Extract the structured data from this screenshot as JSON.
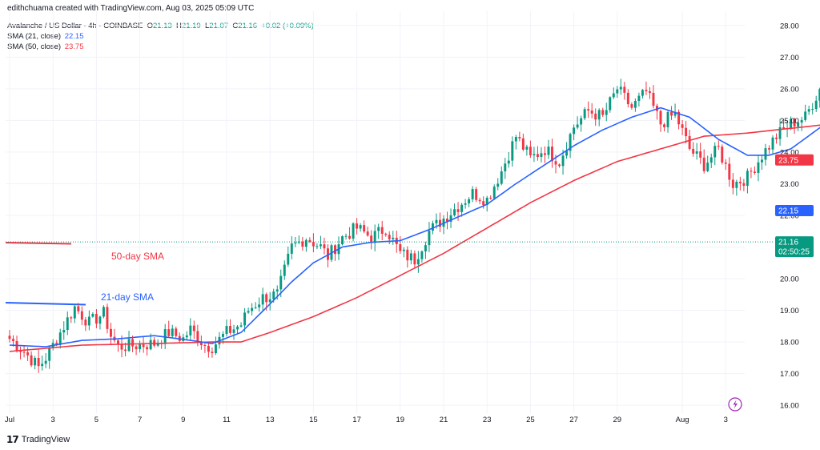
{
  "header": {
    "credit": "edithchuama created with TradingView.com, Aug 03, 2025 05:09 UTC"
  },
  "legend": {
    "symbol": "Avalanche / US Dollar · 4h · COINBASE",
    "ohlc": {
      "o_label": "O",
      "o": "21.13",
      "h_label": "H",
      "h": "21.19",
      "l_label": "L",
      "l": "21.07",
      "c_label": "C",
      "c": "21.16",
      "chg": "+0.02 (+0.09%)"
    },
    "sma21": {
      "label": "SMA (21, close)",
      "value": "22.15"
    },
    "sma50": {
      "label": "SMA (50, close)",
      "value": "23.75"
    }
  },
  "annotations": {
    "sma50_label": "50-day SMA",
    "sma21_label": "21-day SMA"
  },
  "price_badges": {
    "last": "21.16",
    "countdown": "02:50:25",
    "sma21": "22.15",
    "sma50": "23.75"
  },
  "colors": {
    "up": "#089981",
    "down": "#F23645",
    "sma21": "#2962FF",
    "sma50": "#F23645",
    "grid": "#F0F3FA",
    "text": "#131722"
  },
  "branding": "TradingView",
  "chart_data": {
    "type": "candlestick",
    "ylim": [
      15.75,
      28.45
    ],
    "yticks": [
      "16.00",
      "17.00",
      "18.00",
      "19.00",
      "20.00",
      "21.00",
      "22.00",
      "23.00",
      "24.00",
      "25.00",
      "26.00",
      "27.00",
      "28.00"
    ],
    "xticks": [
      "Jul",
      "3",
      "5",
      "7",
      "9",
      "11",
      "13",
      "15",
      "17",
      "19",
      "21",
      "23",
      "25",
      "27",
      "29",
      "Aug",
      "3"
    ],
    "candles_per_day": 6,
    "x_start_offset": 0,
    "anchors": [
      [
        0,
        18.1
      ],
      [
        4,
        17.7
      ],
      [
        8,
        17.2
      ],
      [
        10,
        17.5
      ],
      [
        14,
        18.3
      ],
      [
        18,
        19.1
      ],
      [
        22,
        18.6
      ],
      [
        26,
        18.9
      ],
      [
        28,
        18.2
      ],
      [
        30,
        17.85
      ],
      [
        36,
        17.9
      ],
      [
        40,
        17.95
      ],
      [
        44,
        18.3
      ],
      [
        48,
        18.1
      ],
      [
        50,
        18.4
      ],
      [
        54,
        17.9
      ],
      [
        56,
        17.85
      ],
      [
        60,
        18.3
      ],
      [
        64,
        18.55
      ],
      [
        66,
        19.0
      ],
      [
        70,
        19.4
      ],
      [
        74,
        19.5
      ],
      [
        78,
        21.0
      ],
      [
        82,
        21.3
      ],
      [
        86,
        21.0
      ],
      [
        88,
        20.7
      ],
      [
        92,
        21.3
      ],
      [
        96,
        21.6
      ],
      [
        100,
        21.3
      ],
      [
        104,
        21.6
      ],
      [
        108,
        20.8
      ],
      [
        112,
        20.6
      ],
      [
        116,
        21.5
      ],
      [
        120,
        21.9
      ],
      [
        124,
        22.3
      ],
      [
        128,
        22.7
      ],
      [
        132,
        22.5
      ],
      [
        136,
        23.4
      ],
      [
        140,
        24.5
      ],
      [
        144,
        23.8
      ],
      [
        148,
        24.1
      ],
      [
        152,
        23.7
      ],
      [
        156,
        24.8
      ],
      [
        160,
        25.3
      ],
      [
        164,
        25.1
      ],
      [
        168,
        26.0
      ],
      [
        172,
        25.4
      ],
      [
        176,
        25.9
      ],
      [
        180,
        24.9
      ],
      [
        184,
        25.2
      ],
      [
        188,
        24.1
      ],
      [
        192,
        23.6
      ],
      [
        196,
        24.1
      ],
      [
        200,
        23.0
      ],
      [
        204,
        23.2
      ],
      [
        208,
        23.9
      ],
      [
        212,
        24.5
      ],
      [
        216,
        24.9
      ],
      [
        220,
        25.1
      ],
      [
        224,
        26.0
      ],
      [
        228,
        27.35
      ],
      [
        230,
        26.2
      ],
      [
        234,
        25.2
      ],
      [
        238,
        25.0
      ],
      [
        242,
        24.2
      ],
      [
        246,
        24.0
      ],
      [
        250,
        23.2
      ],
      [
        254,
        24.0
      ],
      [
        258,
        22.9
      ],
      [
        262,
        22.0
      ],
      [
        266,
        21.8
      ],
      [
        270,
        21.4
      ],
      [
        274,
        21.0
      ],
      [
        277,
        21.16
      ]
    ],
    "sma21": [
      [
        0,
        17.9
      ],
      [
        10,
        17.85
      ],
      [
        20,
        18.05
      ],
      [
        30,
        18.1
      ],
      [
        40,
        18.2
      ],
      [
        50,
        18.05
      ],
      [
        56,
        17.95
      ],
      [
        64,
        18.3
      ],
      [
        72,
        19.2
      ],
      [
        78,
        19.9
      ],
      [
        84,
        20.5
      ],
      [
        92,
        21.0
      ],
      [
        100,
        21.15
      ],
      [
        108,
        21.2
      ],
      [
        116,
        21.55
      ],
      [
        124,
        21.95
      ],
      [
        132,
        22.35
      ],
      [
        140,
        23.0
      ],
      [
        148,
        23.6
      ],
      [
        156,
        24.2
      ],
      [
        164,
        24.7
      ],
      [
        172,
        25.1
      ],
      [
        180,
        25.4
      ],
      [
        188,
        25.1
      ],
      [
        196,
        24.4
      ],
      [
        204,
        23.9
      ],
      [
        210,
        23.9
      ],
      [
        216,
        24.1
      ],
      [
        222,
        24.6
      ],
      [
        228,
        25.1
      ],
      [
        234,
        25.4
      ],
      [
        240,
        25.3
      ],
      [
        248,
        24.8
      ],
      [
        256,
        24.0
      ],
      [
        264,
        23.1
      ],
      [
        270,
        22.6
      ],
      [
        277,
        22.15
      ]
    ],
    "sma50": [
      [
        0,
        17.7
      ],
      [
        20,
        17.9
      ],
      [
        40,
        17.95
      ],
      [
        56,
        18.0
      ],
      [
        64,
        18.0
      ],
      [
        72,
        18.3
      ],
      [
        84,
        18.8
      ],
      [
        96,
        19.4
      ],
      [
        108,
        20.1
      ],
      [
        120,
        20.8
      ],
      [
        132,
        21.6
      ],
      [
        144,
        22.4
      ],
      [
        156,
        23.1
      ],
      [
        168,
        23.7
      ],
      [
        180,
        24.1
      ],
      [
        192,
        24.5
      ],
      [
        204,
        24.6
      ],
      [
        216,
        24.75
      ],
      [
        228,
        24.9
      ],
      [
        240,
        24.7
      ],
      [
        252,
        24.4
      ],
      [
        264,
        24.1
      ],
      [
        277,
        23.75
      ]
    ]
  }
}
